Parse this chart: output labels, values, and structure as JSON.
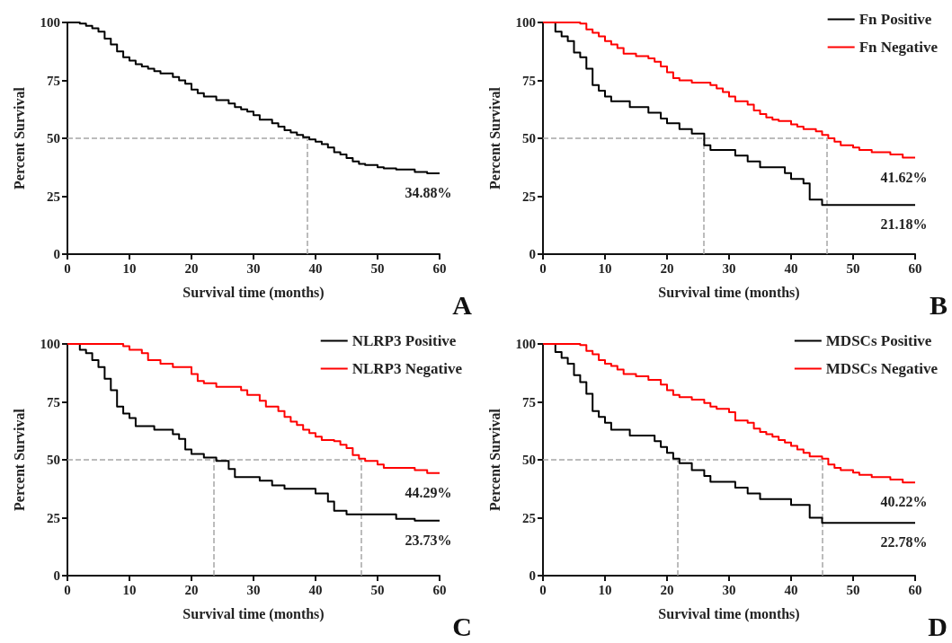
{
  "chart_data": [
    {
      "type": "step",
      "xlabel": "Survival time (months)",
      "ylabel": "Percent Survival",
      "xlim": [
        0,
        60
      ],
      "xticks": [
        0,
        10,
        20,
        30,
        40,
        50,
        60
      ],
      "ylim": [
        0,
        100
      ],
      "yticks": [
        0,
        25,
        50,
        75,
        100
      ],
      "line_style": "solid",
      "series": [
        {
          "color": "#000000",
          "x": [
            0,
            2,
            3,
            4,
            5,
            6,
            7,
            8,
            9,
            10,
            11,
            12,
            13,
            14,
            15,
            17,
            18,
            19,
            20,
            21,
            22,
            24,
            26,
            27,
            28,
            29,
            30,
            31,
            33,
            34,
            35,
            36,
            37,
            38,
            39,
            40,
            41,
            42,
            43,
            44,
            45,
            46,
            47,
            48,
            50,
            51,
            53,
            56,
            58,
            60
          ],
          "values": [
            100,
            99.5,
            98.5,
            97.5,
            96,
            93,
            90.5,
            87.5,
            85,
            83.5,
            82,
            81,
            80,
            79,
            78,
            76.5,
            75,
            73.5,
            71,
            69.5,
            68,
            66.5,
            65,
            63.5,
            62.5,
            61.5,
            60,
            58,
            56.5,
            55,
            53.5,
            52.5,
            51.5,
            50.5,
            49.5,
            48.5,
            47.5,
            46,
            44,
            43,
            41.5,
            40,
            39,
            38.5,
            37.5,
            37,
            36.5,
            35.5,
            34.88,
            34.88
          ]
        }
      ],
      "ref_lines": [
        {
          "axis": "y",
          "value": 50,
          "color": "#a6a6a6",
          "line_style": "dashed"
        },
        {
          "axis": "x",
          "value": 38.7,
          "color": "#a6a6a6",
          "line_style": "dashed"
        }
      ],
      "annotations": [
        {
          "text": "34.88%",
          "y": 34.88
        },
        "A"
      ]
    },
    {
      "type": "step",
      "xlabel": "Survival time (months)",
      "ylabel": "Percent Survival",
      "xlim": [
        0,
        60
      ],
      "xticks": [
        0,
        10,
        20,
        30,
        40,
        50,
        60
      ],
      "ylim": [
        0,
        100
      ],
      "yticks": [
        0,
        25,
        50,
        75,
        100
      ],
      "line_style": "solid",
      "legend": "top right",
      "series": [
        {
          "name": "Fn Positive",
          "color": "#000000",
          "x": [
            0,
            2,
            3,
            4,
            5,
            6,
            7,
            8,
            9,
            10,
            11,
            14,
            17,
            19,
            20,
            22,
            24,
            26,
            27,
            31,
            33,
            35,
            39,
            40,
            42,
            43,
            45,
            60
          ],
          "values": [
            100,
            96,
            94,
            92,
            87,
            85,
            80,
            73,
            70.5,
            68,
            66,
            63.5,
            61,
            58.5,
            56.5,
            54,
            52,
            47,
            45,
            42.5,
            40,
            37.5,
            35,
            32.5,
            30.5,
            23.5,
            21.18,
            21.18
          ]
        },
        {
          "name": "Fn Negative",
          "color": "#ff0000",
          "x": [
            0,
            4,
            6,
            7,
            8,
            9,
            10,
            11,
            12,
            13,
            15,
            17,
            18,
            19,
            20,
            21,
            22,
            24,
            27,
            28,
            29,
            30,
            31,
            33,
            34,
            35,
            36,
            37,
            38,
            40,
            41,
            42,
            44,
            45,
            46,
            47,
            48,
            50,
            51,
            53,
            56,
            58,
            60
          ],
          "values": [
            100,
            100,
            99.5,
            97,
            95.5,
            94,
            92,
            90.5,
            89,
            86.5,
            85.5,
            84.5,
            83,
            81,
            78.5,
            76,
            75,
            74,
            73,
            71.5,
            70,
            68,
            66,
            64.5,
            62,
            60.5,
            59,
            58,
            57.5,
            56,
            55,
            54,
            53,
            51.5,
            50,
            48.5,
            47,
            46,
            45,
            44,
            43,
            41.62,
            41.62
          ]
        }
      ],
      "ref_lines": [
        {
          "axis": "y",
          "value": 50,
          "color": "#a6a6a6",
          "line_style": "dashed"
        },
        {
          "axis": "x",
          "value": 25.9,
          "color": "#a6a6a6",
          "line_style": "dashed"
        },
        {
          "axis": "x",
          "value": 45.8,
          "color": "#a6a6a6",
          "line_style": "dashed"
        }
      ],
      "annotations": [
        {
          "text": "41.62%",
          "y": 41.62
        },
        {
          "text": "21.18%",
          "y": 21.18
        },
        "B"
      ]
    },
    {
      "type": "step",
      "xlabel": "Survival time (months)",
      "ylabel": "Percent Survival",
      "xlim": [
        0,
        60
      ],
      "xticks": [
        0,
        10,
        20,
        30,
        40,
        50,
        60
      ],
      "ylim": [
        0,
        100
      ],
      "yticks": [
        0,
        25,
        50,
        75,
        100
      ],
      "line_style": "solid",
      "legend": "top right",
      "series": [
        {
          "name": "NLRP3 Positive",
          "color": "#000000",
          "x": [
            0,
            2,
            3,
            4,
            5,
            6,
            7,
            8,
            9,
            10,
            11,
            14,
            17,
            18,
            19,
            20,
            22,
            24,
            26,
            27,
            31,
            33,
            35,
            40,
            42,
            43,
            45,
            53,
            56,
            60
          ],
          "values": [
            100,
            97.5,
            96,
            93,
            90,
            85,
            80,
            73,
            70,
            68,
            64.5,
            63,
            61,
            59,
            54.5,
            52.5,
            51,
            49.5,
            46,
            42.5,
            41,
            39,
            37.5,
            35.5,
            32,
            28,
            26.5,
            24.5,
            23.73,
            23.73
          ]
        },
        {
          "name": "NLRP3 Negative",
          "color": "#ff0000",
          "x": [
            0,
            9,
            10,
            12,
            13,
            15,
            17,
            20,
            21,
            22,
            24,
            28,
            29,
            31,
            32,
            34,
            35,
            36,
            37,
            38,
            39,
            40,
            41,
            43,
            44,
            45,
            46,
            47,
            48,
            50,
            51,
            56,
            58,
            60
          ],
          "values": [
            100,
            99,
            97.5,
            96,
            93,
            91.5,
            90,
            87,
            84,
            83,
            81.5,
            80,
            78,
            75.5,
            73,
            71,
            68.5,
            66.5,
            65,
            63,
            61.5,
            60,
            58.5,
            58,
            56.5,
            55,
            52,
            50.5,
            49.5,
            48,
            46.5,
            45.5,
            44.29,
            44.29
          ]
        }
      ],
      "ref_lines": [
        {
          "axis": "y",
          "value": 50,
          "color": "#a6a6a6",
          "line_style": "dashed"
        },
        {
          "axis": "x",
          "value": 23.6,
          "color": "#a6a6a6",
          "line_style": "dashed"
        },
        {
          "axis": "x",
          "value": 47.4,
          "color": "#a6a6a6",
          "line_style": "dashed"
        }
      ],
      "annotations": [
        {
          "text": "44.29%",
          "y": 44.29
        },
        {
          "text": "23.73%",
          "y": 23.73
        },
        "C"
      ]
    },
    {
      "type": "step",
      "xlabel": "Survival time (months)",
      "ylabel": "Percent Survival",
      "xlim": [
        0,
        60
      ],
      "xticks": [
        0,
        10,
        20,
        30,
        40,
        50,
        60
      ],
      "ylim": [
        0,
        100
      ],
      "yticks": [
        0,
        25,
        50,
        75,
        100
      ],
      "line_style": "solid",
      "legend": "top right",
      "series": [
        {
          "name": "MDSCs Positive",
          "color": "#000000",
          "x": [
            0,
            2,
            3,
            4,
            5,
            6,
            7,
            8,
            9,
            10,
            11,
            14,
            18,
            19,
            20,
            21,
            22,
            24,
            26,
            27,
            31,
            33,
            35,
            40,
            43,
            45,
            60
          ],
          "values": [
            100,
            96.5,
            94,
            91.5,
            86.5,
            83.5,
            78.5,
            71,
            68.5,
            66,
            63,
            60.5,
            58,
            55.5,
            53,
            50.5,
            48.5,
            45.5,
            43,
            40.5,
            38,
            35.5,
            33,
            30.5,
            25,
            22.78,
            22.78
          ]
        },
        {
          "name": "MDSCs Negative",
          "color": "#ff0000",
          "x": [
            0,
            4,
            6,
            7,
            8,
            9,
            10,
            11,
            12,
            13,
            15,
            17,
            19,
            20,
            21,
            22,
            24,
            26,
            27,
            28,
            30,
            31,
            33,
            34,
            35,
            36,
            37,
            38,
            39,
            40,
            41,
            42,
            43,
            45,
            46,
            47,
            48,
            50,
            51,
            53,
            56,
            58,
            60
          ],
          "values": [
            100,
            100,
            99.5,
            97,
            95.5,
            93,
            91.5,
            90.5,
            89,
            87,
            86,
            84.5,
            82.5,
            80,
            78,
            77,
            76,
            74.5,
            73,
            72,
            70.5,
            67,
            66,
            63.5,
            62,
            61,
            60,
            58.5,
            57.5,
            56,
            54.5,
            53,
            51.5,
            50.5,
            48,
            46.5,
            45.5,
            44.5,
            43.5,
            42.5,
            41.5,
            40.22,
            40.22
          ]
        }
      ],
      "ref_lines": [
        {
          "axis": "y",
          "value": 50,
          "color": "#a6a6a6",
          "line_style": "dashed"
        },
        {
          "axis": "x",
          "value": 21.7,
          "color": "#a6a6a6",
          "line_style": "dashed"
        },
        {
          "axis": "x",
          "value": 45,
          "color": "#a6a6a6",
          "line_style": "dashed"
        }
      ],
      "annotations": [
        {
          "text": "40.22%",
          "y": 40.22
        },
        {
          "text": "22.78%",
          "y": 22.78
        },
        "D"
      ]
    }
  ]
}
